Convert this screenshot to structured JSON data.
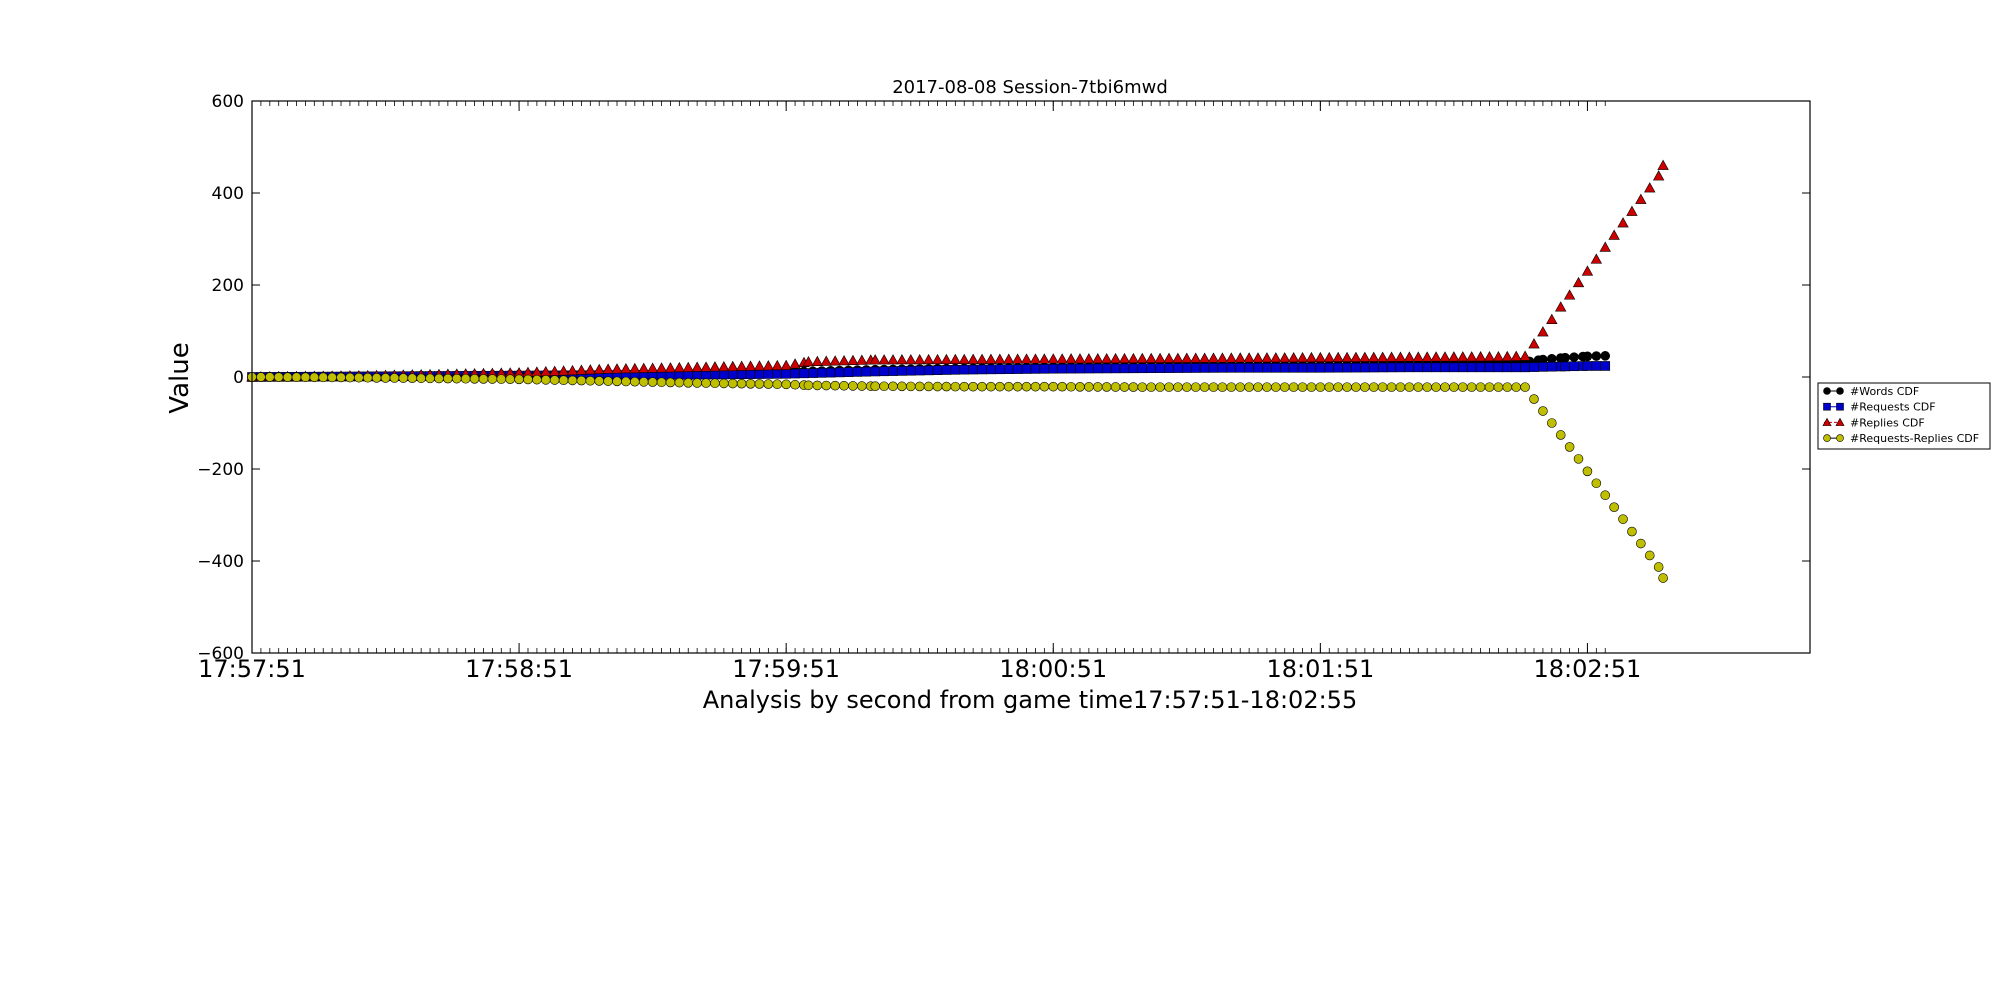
{
  "chart_data": {
    "type": "scatter",
    "title": "2017-08-08 Session-7tbi6mwd",
    "xlabel": "Analysis by second from game time17:57:51-18:02:55",
    "ylabel": "Value",
    "ylim": [
      -600,
      600
    ],
    "yticks": [
      600,
      400,
      200,
      0,
      -200,
      -400,
      -600
    ],
    "ytick_labels": [
      "600",
      "400",
      "200",
      "0",
      "−200",
      "−400",
      "−600"
    ],
    "xlim_seconds": [
      0,
      350
    ],
    "xticks": [
      {
        "t": 0,
        "label": "17:57:51"
      },
      {
        "t": 60,
        "label": "17:58:51"
      },
      {
        "t": 120,
        "label": "17:59:51"
      },
      {
        "t": 180,
        "label": "18:00:51"
      },
      {
        "t": 240,
        "label": "18:01:51"
      },
      {
        "t": 300,
        "label": "18:02:51"
      }
    ],
    "legend_position": "right",
    "series": [
      {
        "name": "#Words CDF",
        "marker": "circle",
        "color": "#000000",
        "points": [
          [
            0,
            0
          ],
          [
            20,
            1
          ],
          [
            40,
            3
          ],
          [
            60,
            5
          ],
          [
            80,
            7
          ],
          [
            100,
            9
          ],
          [
            120,
            11
          ],
          [
            140,
            16
          ],
          [
            160,
            19
          ],
          [
            180,
            21
          ],
          [
            200,
            23
          ],
          [
            220,
            25
          ],
          [
            240,
            26
          ],
          [
            260,
            28
          ],
          [
            280,
            30
          ],
          [
            285,
            31
          ],
          [
            290,
            38
          ],
          [
            295,
            42
          ],
          [
            300,
            45
          ],
          [
            304,
            46
          ]
        ]
      },
      {
        "name": "#Requests CDF",
        "marker": "square",
        "color": "#0000cc",
        "points": [
          [
            0,
            0
          ],
          [
            20,
            1
          ],
          [
            40,
            2
          ],
          [
            60,
            3
          ],
          [
            80,
            4
          ],
          [
            100,
            5
          ],
          [
            120,
            7
          ],
          [
            140,
            12
          ],
          [
            160,
            16
          ],
          [
            180,
            18
          ],
          [
            200,
            19
          ],
          [
            220,
            20
          ],
          [
            240,
            20
          ],
          [
            260,
            21
          ],
          [
            280,
            21
          ],
          [
            286,
            21
          ],
          [
            290,
            22
          ],
          [
            295,
            23
          ],
          [
            300,
            24
          ],
          [
            304,
            24
          ]
        ]
      },
      {
        "name": "#Replies CDF",
        "marker": "triangle",
        "color": "#cc0000",
        "points": [
          [
            0,
            0
          ],
          [
            20,
            2
          ],
          [
            40,
            5
          ],
          [
            60,
            9
          ],
          [
            80,
            17
          ],
          [
            100,
            21
          ],
          [
            120,
            25
          ],
          [
            125,
            33
          ],
          [
            140,
            37
          ],
          [
            160,
            38
          ],
          [
            180,
            39
          ],
          [
            200,
            40
          ],
          [
            220,
            41
          ],
          [
            240,
            42
          ],
          [
            260,
            43
          ],
          [
            280,
            44
          ],
          [
            286,
            45
          ],
          [
            288,
            72
          ],
          [
            290,
            98
          ],
          [
            292,
            125
          ],
          [
            294,
            152
          ],
          [
            296,
            178
          ],
          [
            298,
            205
          ],
          [
            300,
            230
          ],
          [
            302,
            256
          ],
          [
            304,
            282
          ],
          [
            306,
            308
          ],
          [
            308,
            335
          ],
          [
            310,
            360
          ],
          [
            312,
            386
          ],
          [
            314,
            411
          ],
          [
            316,
            437
          ],
          [
            317,
            460
          ]
        ]
      },
      {
        "name": "#Requests-Replies CDF",
        "marker": "circle",
        "color": "#bfbf00",
        "points": [
          [
            0,
            0
          ],
          [
            20,
            -1
          ],
          [
            40,
            -3
          ],
          [
            60,
            -5
          ],
          [
            80,
            -9
          ],
          [
            100,
            -13
          ],
          [
            120,
            -16
          ],
          [
            125,
            -18
          ],
          [
            140,
            -20
          ],
          [
            160,
            -21
          ],
          [
            180,
            -21
          ],
          [
            200,
            -22
          ],
          [
            220,
            -22
          ],
          [
            240,
            -22
          ],
          [
            260,
            -22
          ],
          [
            280,
            -22
          ],
          [
            286,
            -22
          ],
          [
            288,
            -48
          ],
          [
            290,
            -74
          ],
          [
            292,
            -100
          ],
          [
            294,
            -126
          ],
          [
            296,
            -152
          ],
          [
            298,
            -178
          ],
          [
            300,
            -205
          ],
          [
            302,
            -231
          ],
          [
            304,
            -257
          ],
          [
            306,
            -283
          ],
          [
            308,
            -309
          ],
          [
            310,
            -336
          ],
          [
            312,
            -362
          ],
          [
            314,
            -388
          ],
          [
            316,
            -413
          ],
          [
            317,
            -437
          ]
        ]
      }
    ]
  }
}
